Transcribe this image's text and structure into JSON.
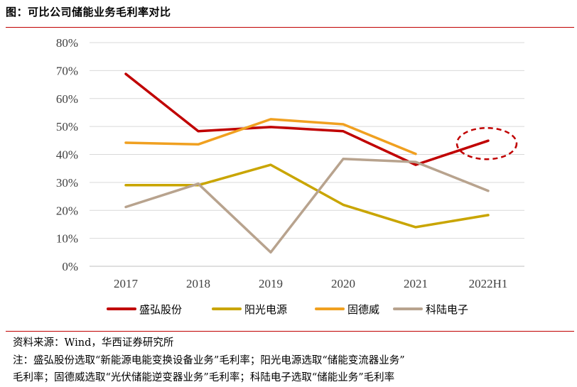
{
  "title": "图：可比公司储能业务毛利率对比",
  "colors": {
    "rule": "#c00000",
    "grid": "#d9d9d9",
    "axis": "#bfbfbf",
    "tick": "#404040",
    "highlight_ellipse": "#c00000"
  },
  "chart_data": {
    "type": "line",
    "categories": [
      "2017",
      "2018",
      "2019",
      "2020",
      "2021",
      "2022H1"
    ],
    "ylim": [
      0,
      80
    ],
    "yticks": [
      0,
      10,
      20,
      30,
      40,
      50,
      60,
      70,
      80
    ],
    "ytick_labels": [
      "0%",
      "10%",
      "20%",
      "30%",
      "40%",
      "50%",
      "60%",
      "70%",
      "80%"
    ],
    "grid": "horizontal",
    "legend_position": "bottom",
    "series": [
      {
        "name": "盛弘股份",
        "color": "#c00000",
        "values": [
          68.8,
          48.3,
          49.8,
          48.3,
          36.3,
          44.9
        ]
      },
      {
        "name": "阳光电源",
        "color": "#c9a500",
        "values": [
          29.0,
          29.0,
          36.3,
          22.0,
          14.0,
          18.3
        ]
      },
      {
        "name": "固德威",
        "color": "#f0a020",
        "values": [
          44.2,
          43.6,
          52.6,
          50.8,
          40.2,
          null
        ]
      },
      {
        "name": "科陆电子",
        "color": "#b8a38e",
        "values": [
          21.2,
          29.5,
          5.0,
          38.4,
          37.3,
          27.0
        ]
      }
    ],
    "annotation": {
      "type": "dashed-ellipse",
      "series": "盛弘股份",
      "category": "2022H1"
    }
  },
  "footer": {
    "source": "资料来源：Wind，华西证券研究所",
    "note_line1": "注：盛弘股份选取“新能源电能变换设备业务”毛利率；阳光电源选取“储能变流器业务”",
    "note_line2": "毛利率；固德威选取“光伏储能逆变器业务”毛利率；科陆电子选取“储能业务”毛利率"
  }
}
